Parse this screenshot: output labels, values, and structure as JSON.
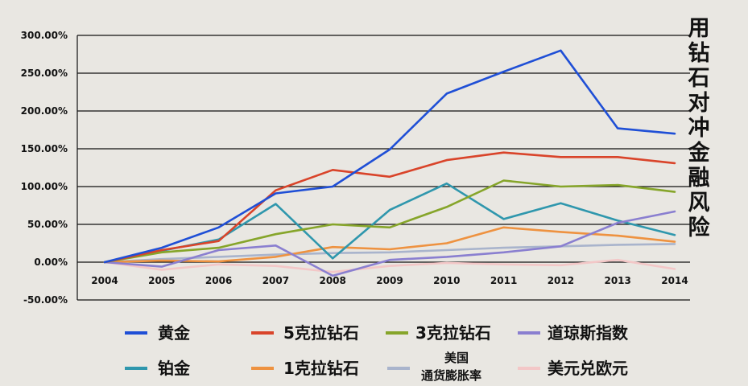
{
  "chart_data": {
    "type": "line",
    "title": "用钻石对冲金融风险",
    "categories": [
      "2004",
      "2005",
      "2006",
      "2007",
      "2008",
      "2009",
      "2010",
      "2011",
      "2012",
      "2013",
      "2014"
    ],
    "ylim": [
      -50,
      300
    ],
    "yticks": [
      -50,
      0,
      50,
      100,
      150,
      200,
      250,
      300
    ],
    "ytick_labels": [
      "-50.00%",
      "0.00%",
      "50.00%",
      "100.00%",
      "150.00%",
      "200.00%",
      "250.00%",
      "300.00%"
    ],
    "grid": true,
    "legend_position": "bottom",
    "series": [
      {
        "name": "黄金",
        "color": "#1f4fd6",
        "values": [
          0,
          19,
          46,
          91,
          100,
          149,
          223,
          252,
          280,
          177,
          170
        ]
      },
      {
        "name": "5克拉钻石",
        "color": "#d9442a",
        "values": [
          0,
          16,
          28,
          95,
          122,
          113,
          135,
          145,
          139,
          139,
          131
        ]
      },
      {
        "name": "3克拉钻石",
        "color": "#86a52a",
        "values": [
          0,
          13,
          19,
          37,
          50,
          46,
          73,
          108,
          100,
          102,
          93
        ]
      },
      {
        "name": "道琼斯指数",
        "color": "#8a7fd0",
        "values": [
          0,
          -6,
          16,
          22,
          -18,
          3,
          7,
          13,
          21,
          52,
          67
        ]
      },
      {
        "name": "铂金",
        "color": "#2f97ad",
        "values": [
          0,
          15,
          30,
          77,
          5,
          69,
          104,
          57,
          78,
          55,
          36
        ]
      },
      {
        "name": "1克拉钻石",
        "color": "#ee9240",
        "values": [
          0,
          2,
          1,
          7,
          20,
          17,
          25,
          46,
          40,
          35,
          27
        ]
      },
      {
        "name": "美国通货膨胀率",
        "color": "#a9b4cc",
        "values": [
          0,
          4,
          7,
          10,
          12,
          13,
          16,
          19,
          21,
          23,
          24
        ]
      },
      {
        "name": "美元兑欧元",
        "color": "#f3c7c7",
        "values": [
          0,
          -10,
          -3,
          -5,
          -13,
          -5,
          -1,
          -3,
          -4,
          3,
          -9
        ]
      }
    ]
  },
  "legend": {
    "items": [
      {
        "label": "黄金",
        "color": "#1f4fd6"
      },
      {
        "label": "5克拉钻石",
        "color": "#d9442a"
      },
      {
        "label": "3克拉钻石",
        "color": "#86a52a"
      },
      {
        "label": "道琼斯指数",
        "color": "#8a7fd0"
      },
      {
        "label": "铂金",
        "color": "#2f97ad"
      },
      {
        "label": "1克拉钻石",
        "color": "#ee9240"
      },
      {
        "label_line1": "美国",
        "label_line2": "通货膨胀率",
        "color": "#a9b4cc"
      },
      {
        "label": "美元兑欧元",
        "color": "#f3c7c7"
      }
    ]
  }
}
